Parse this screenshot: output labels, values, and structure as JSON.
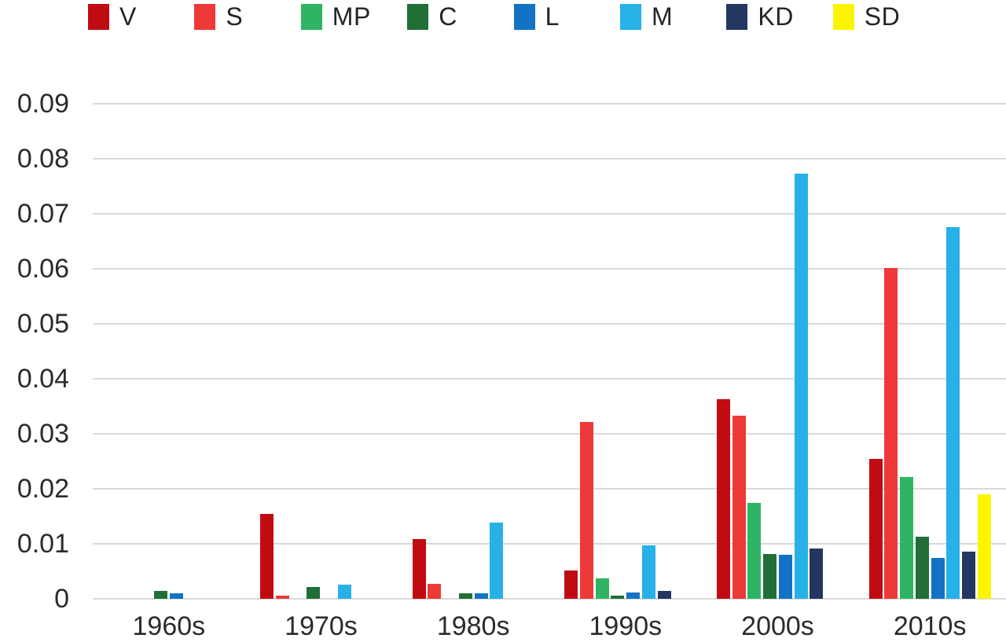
{
  "chart_data": {
    "type": "bar",
    "title": "",
    "xlabel": "",
    "ylabel": "",
    "grid": "horizontal",
    "legend_position": "top",
    "categories": [
      "1960s",
      "1970s",
      "1980s",
      "1990s",
      "2000s",
      "2010s"
    ],
    "series": [
      {
        "name": "V",
        "color": "#C00B13",
        "values": [
          0,
          0.0155,
          0.0108,
          0.0051,
          0.0363,
          0.0255
        ]
      },
      {
        "name": "S",
        "color": "#EE3939",
        "values": [
          0,
          0.0006,
          0.0027,
          0.0322,
          0.0333,
          0.0602
        ]
      },
      {
        "name": "MP",
        "color": "#2FB463",
        "values": [
          0,
          0,
          0,
          0.0037,
          0.0175,
          0.0222
        ]
      },
      {
        "name": "C",
        "color": "#206F37",
        "values": [
          0.0015,
          0.0021,
          0.001,
          0.0006,
          0.0082,
          0.0113
        ]
      },
      {
        "name": "L",
        "color": "#1273C4",
        "values": [
          0.001,
          0,
          0.001,
          0.0011,
          0.008,
          0.0075
        ]
      },
      {
        "name": "M",
        "color": "#27B1E7",
        "values": [
          0,
          0.0026,
          0.0139,
          0.0097,
          0.0773,
          0.0676
        ]
      },
      {
        "name": "KD",
        "color": "#233760",
        "values": [
          0,
          0,
          0,
          0.0015,
          0.0092,
          0.0086
        ]
      },
      {
        "name": "SD",
        "color": "#FCF500",
        "values": [
          0,
          0,
          0,
          0,
          0,
          0.019
        ]
      }
    ],
    "ylim": [
      0,
      0.09
    ],
    "yticks": [
      0,
      0.01,
      0.02,
      0.03,
      0.04,
      0.05,
      0.06,
      0.07,
      0.08,
      0.09
    ],
    "ytick_labels": [
      "0",
      "0.01",
      "0.02",
      "0.03",
      "0.04",
      "0.05",
      "0.06",
      "0.07",
      "0.08",
      "0.09"
    ]
  },
  "colors": {
    "background": "#FFFFFF",
    "gridline": "#D9D9D9",
    "text": "#2B2B2B"
  }
}
